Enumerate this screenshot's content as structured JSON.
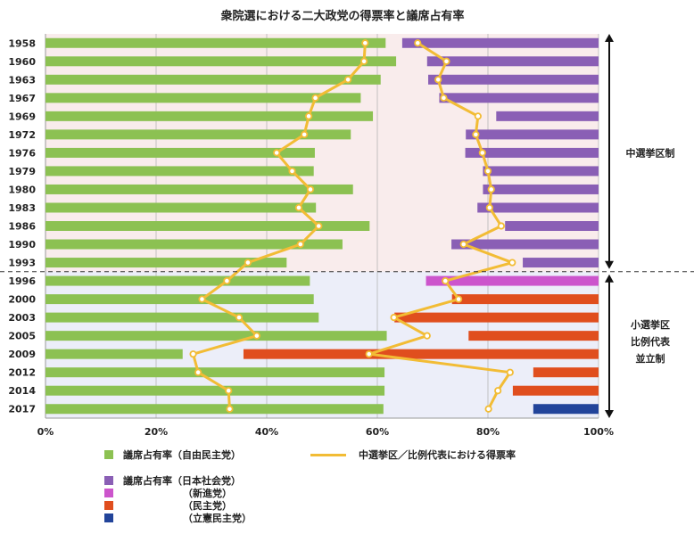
{
  "chart_data": {
    "type": "bar",
    "title": "衆院選における二大政党の得票率と議席占有率",
    "categories": [
      "1958",
      "1960",
      "1963",
      "1967",
      "1969",
      "1972",
      "1976",
      "1979",
      "1980",
      "1983",
      "1986",
      "1990",
      "1993",
      "1996",
      "2000",
      "2003",
      "2005",
      "2009",
      "2012",
      "2014",
      "2017"
    ],
    "x_ticks": [
      "0%",
      "20%",
      "40%",
      "60%",
      "80%",
      "100%"
    ],
    "xlim": [
      0,
      100
    ],
    "grid": true,
    "legend_position": "bottom",
    "colors": {
      "ldp": "#8cc152",
      "jsp": "#8a5fb5",
      "shinshinto": "#cc55cc",
      "dpj": "#e04e1e",
      "cdp": "#22449a",
      "line": "#f2bc35",
      "bg_top": "#f9ecec",
      "bg_bottom": "#eceef9"
    },
    "series": [
      {
        "name": "議席占有率（自由民主党）",
        "role": "ldp_seat_share",
        "values": [
          61.5,
          63.4,
          60.6,
          57.0,
          59.2,
          55.2,
          48.7,
          48.5,
          55.6,
          48.9,
          58.6,
          53.7,
          43.6,
          47.8,
          48.5,
          49.4,
          61.7,
          24.8,
          61.3,
          61.3,
          61.1
        ]
      },
      {
        "name": "中選挙区／比例代表における得票率",
        "role": "ldp_vote_share",
        "values": [
          57.8,
          57.6,
          54.7,
          48.8,
          47.6,
          46.8,
          41.8,
          44.6,
          47.9,
          45.8,
          49.4,
          46.1,
          36.6,
          32.8,
          28.3,
          35.0,
          38.2,
          26.7,
          27.6,
          33.1,
          33.3
        ]
      },
      {
        "name": "議席占有率（日本社会党）",
        "role": "opposition_seat_share",
        "party": "jsp",
        "values": [
          35.5,
          31.0,
          30.8,
          28.8,
          18.5,
          24.0,
          24.1,
          20.9,
          20.9,
          21.9,
          16.9,
          26.6,
          13.7,
          null,
          null,
          null,
          null,
          null,
          null,
          null,
          null
        ]
      },
      {
        "name": "（新進党）",
        "role": "opposition_seat_share",
        "party": "shinshinto",
        "values": [
          null,
          null,
          null,
          null,
          null,
          null,
          null,
          null,
          null,
          null,
          null,
          null,
          null,
          31.2,
          null,
          null,
          null,
          null,
          null,
          null,
          null
        ]
      },
      {
        "name": "（民主党）",
        "role": "opposition_seat_share",
        "party": "dpj",
        "values": [
          null,
          null,
          null,
          null,
          null,
          null,
          null,
          null,
          null,
          null,
          null,
          null,
          null,
          null,
          26.5,
          36.9,
          23.5,
          64.2,
          11.8,
          15.5,
          null
        ]
      },
      {
        "name": "（立憲民主党）",
        "role": "opposition_seat_share",
        "party": "cdp",
        "values": [
          null,
          null,
          null,
          null,
          null,
          null,
          null,
          null,
          null,
          null,
          null,
          null,
          null,
          null,
          null,
          null,
          null,
          null,
          null,
          null,
          11.8
        ]
      },
      {
        "name": "中選挙区／比例代表における得票率",
        "role": "opposition_vote_share",
        "values": [
          67.3,
          72.5,
          71.0,
          72.0,
          78.2,
          77.8,
          79.0,
          80.0,
          80.6,
          80.3,
          82.4,
          75.6,
          84.4,
          72.3,
          74.7,
          63.0,
          69.0,
          58.5,
          84.0,
          81.8,
          80.1
        ]
      }
    ],
    "annotations": {
      "upper_era": "中選挙区制",
      "lower_era_lines": [
        "小選挙区",
        "比例代表",
        "並立制"
      ]
    },
    "legend": {
      "ldp": "議席占有率（自由民主党）",
      "line": "中選挙区／比例代表における得票率",
      "jsp": "議席占有率（日本社会党）",
      "shinshinto": "（新進党）",
      "dpj": "（民主党）",
      "cdp": "（立憲民主党）"
    }
  }
}
